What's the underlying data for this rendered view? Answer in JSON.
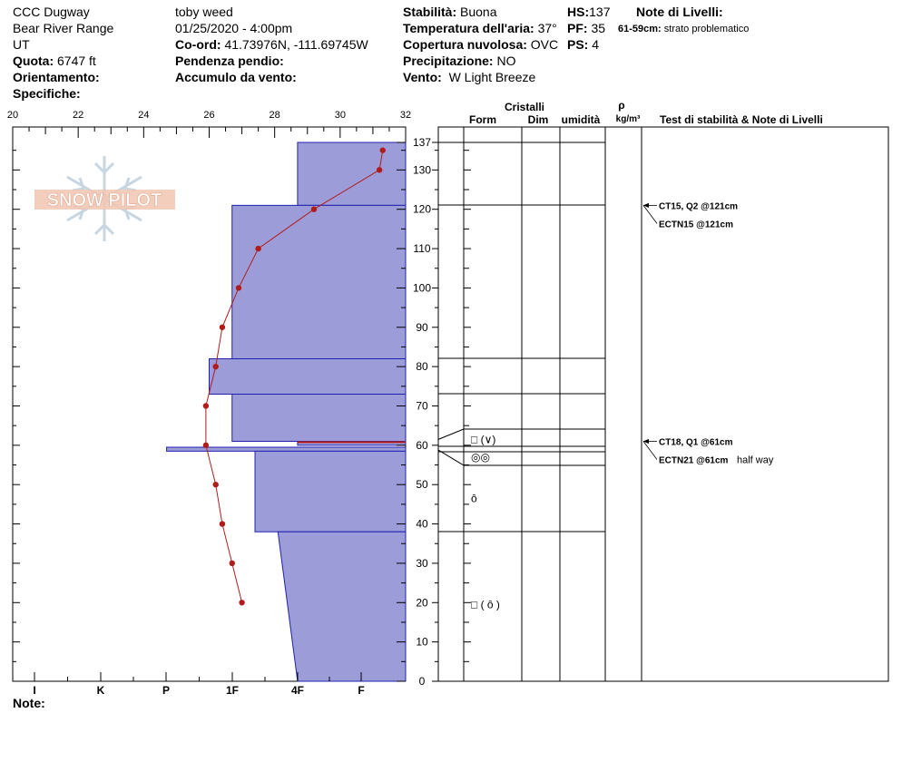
{
  "header": {
    "site": "CCC Dugway",
    "range": "Bear River Range",
    "state": "UT",
    "elevation_label": "Quota:",
    "elevation": "6747 ft",
    "aspect_label": "Orientamento:",
    "specifics_label": "Specifiche:",
    "observer": "toby weed",
    "datetime": "01/25/2020 - 4:00pm",
    "coord_label": "Co-ord:",
    "coords": "41.73976N, -111.69745W",
    "slope_label": "Pendenza pendio:",
    "wind_load_label": "Accumulo da vento:",
    "stability_label": "Stabilità:",
    "stability": "Buona",
    "air_temp_label": "Temperatura dell'aria:",
    "air_temp": "37°",
    "cloud_label": "Copertura nuvolosa:",
    "cloud": "OVC",
    "precip_label": "Precipitazione:",
    "precip": "NO",
    "wind_label": "Vento:",
    "wind": "W Light Breeze",
    "hs_label": "HS:",
    "hs": "137",
    "pf_label": "PF:",
    "pf": "35",
    "ps_label": "PS:",
    "ps": "4",
    "layer_notes_label": "Note di Livelli:",
    "layer_note_range": "61-59cm:",
    "layer_note_text": "strato problematico"
  },
  "logo": {
    "text": "SNOW PILOT"
  },
  "footer": {
    "notes_label": "Note:"
  },
  "table_headers": {
    "crystals": "Cristalli",
    "form": "Form",
    "size": "Dim",
    "moisture": "umidità",
    "rho": "ρ",
    "density_unit": "kg/m³",
    "tests_notes": "Test di stabilità & Note di Livelli"
  },
  "chart_data": {
    "type": "snow_profile",
    "temperature_axis": {
      "ticks": [
        "20",
        "22",
        "24",
        "26",
        "28",
        "30",
        "32"
      ],
      "range": [
        20,
        32
      ]
    },
    "hardness_axis": {
      "ticks": [
        "I",
        "K",
        "P",
        "1F",
        "4F",
        "F"
      ]
    },
    "depth_axis": {
      "range": [
        0,
        137
      ],
      "ticks": [
        "0",
        "10",
        "20",
        "30",
        "40",
        "50",
        "60",
        "70",
        "80",
        "90",
        "100",
        "110",
        "120",
        "130",
        "137"
      ]
    },
    "layer_boundaries": [
      137,
      121,
      82,
      73,
      64,
      61,
      59,
      55,
      38
    ],
    "hardness_profile": [
      {
        "top": 137,
        "bottom": 121,
        "temp_x": 28.7
      },
      {
        "top": 121,
        "bottom": 82,
        "temp_x": 26.7
      },
      {
        "top": 82,
        "bottom": 73,
        "temp_x": 26.0
      },
      {
        "top": 73,
        "bottom": 61,
        "temp_x": 26.7
      },
      {
        "top": 61,
        "bottom": 60,
        "temp_x": 28.7
      },
      {
        "top": 59.5,
        "bottom": 58.5,
        "temp_x": 24.7
      },
      {
        "top": 58.5,
        "bottom": 38,
        "temp_x": 27.4
      },
      {
        "top": 38,
        "bottom": 0,
        "temp_x_top": 28.1,
        "temp_x_bottom": 28.7
      }
    ],
    "temperature_profile": [
      {
        "depth": 135,
        "temp": 31.3
      },
      {
        "depth": 130,
        "temp": 31.2
      },
      {
        "depth": 120,
        "temp": 29.2
      },
      {
        "depth": 110,
        "temp": 27.5
      },
      {
        "depth": 100,
        "temp": 26.9
      },
      {
        "depth": 90,
        "temp": 26.4
      },
      {
        "depth": 80,
        "temp": 26.2
      },
      {
        "depth": 70,
        "temp": 25.9
      },
      {
        "depth": 60,
        "temp": 25.9
      },
      {
        "depth": 50,
        "temp": 26.2
      },
      {
        "depth": 40,
        "temp": 26.4
      },
      {
        "depth": 30,
        "temp": 26.7
      },
      {
        "depth": 20,
        "temp": 27.0
      }
    ],
    "crystal_forms": [
      {
        "depth": 61.5,
        "text": "□ (∨)"
      },
      {
        "depth": 57,
        "text": "◎◎"
      },
      {
        "depth": 46.5,
        "text": "ȏ"
      },
      {
        "depth": 19.5,
        "text": "□ ( ȏ )"
      }
    ],
    "test_notes": [
      {
        "depth": 121,
        "text": "CT15, Q2 @121cm",
        "extra": ""
      },
      {
        "depth": 121,
        "text": "ECTN15 @121cm",
        "extra": ""
      },
      {
        "depth": 61,
        "text": "CT18, Q1 @61cm",
        "extra": ""
      },
      {
        "depth": 61,
        "text": "ECTN21 @61cm",
        "extra": "half way"
      }
    ]
  },
  "colors": {
    "hardness_fill": "#9c9cd8",
    "hardness_stroke": "#2020b0",
    "temperature": "#b01c1c",
    "logo": "#f2c5b0",
    "snowflake": "#c8d6e2"
  }
}
